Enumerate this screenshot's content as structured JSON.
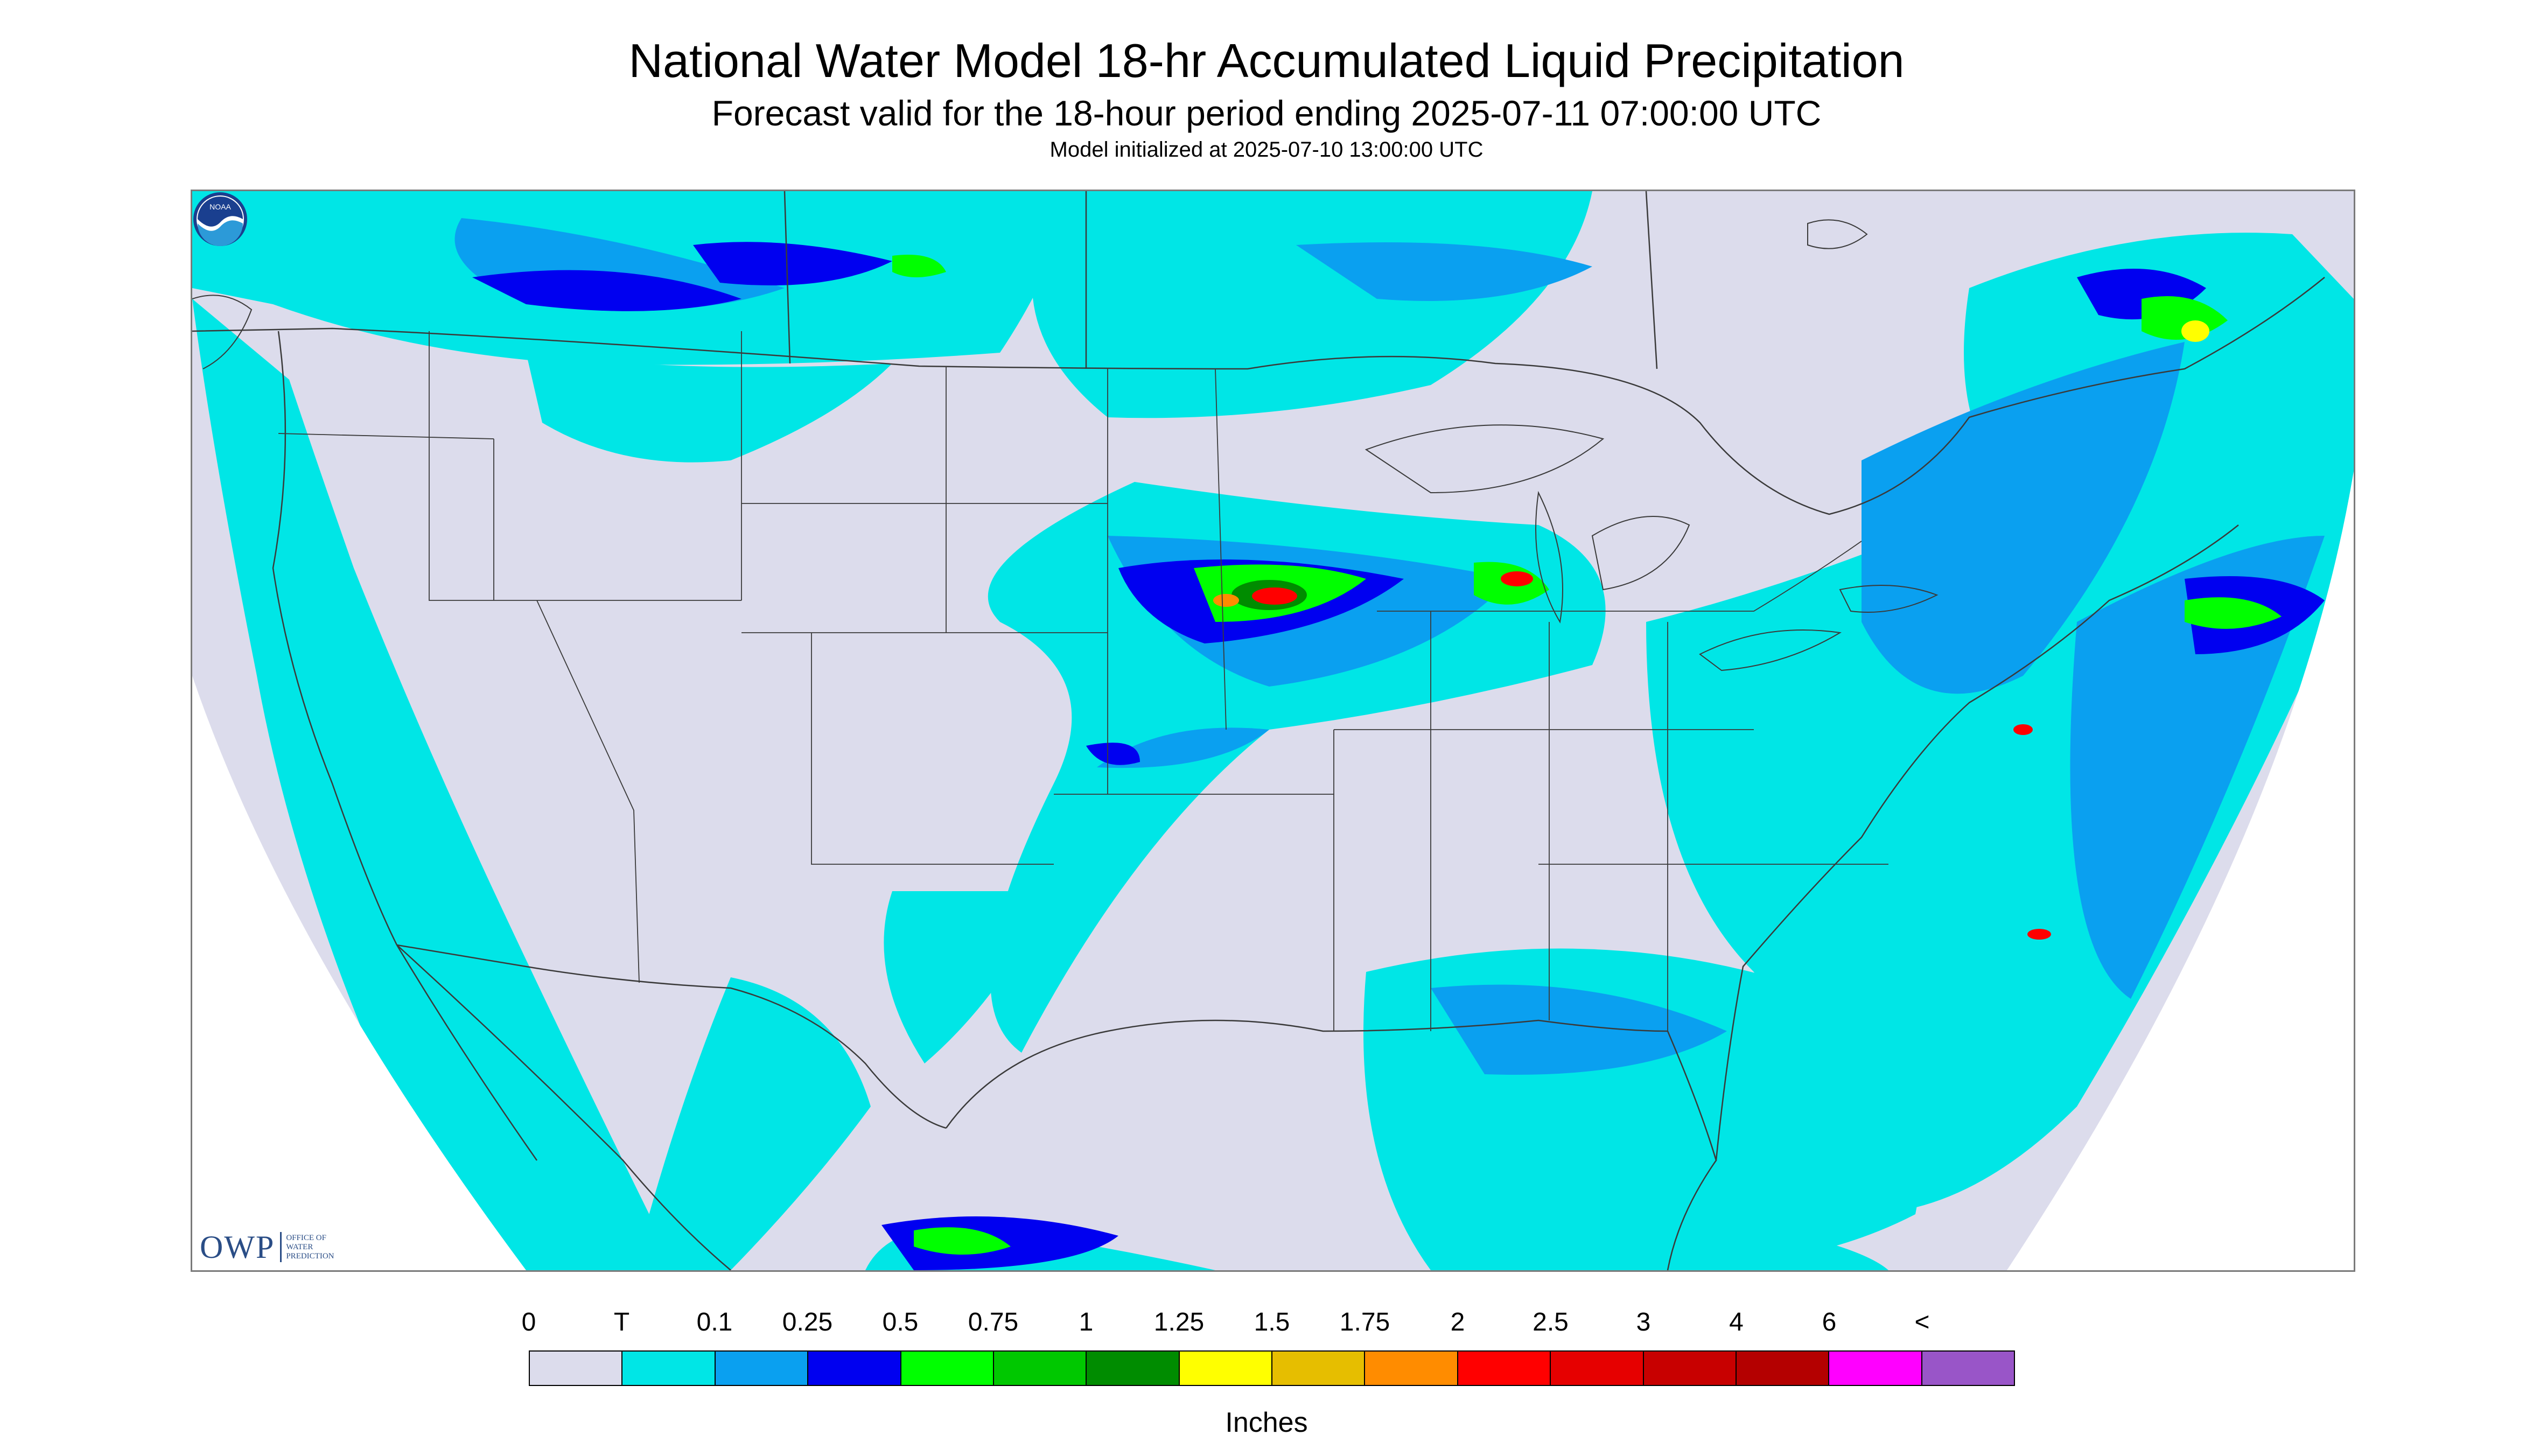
{
  "header": {
    "title": "National Water Model 18-hr Accumulated Liquid Precipitation",
    "subtitle": "Forecast valid for the 18-hour period ending 2025-07-11 07:00:00 UTC",
    "init": "Model initialized at 2025-07-10 13:00:00 UTC"
  },
  "logos": {
    "owp_mark": "OWP",
    "owp_lines": [
      "OFFICE OF",
      "WATER",
      "PREDICTION"
    ],
    "noaa_text": "NOAA"
  },
  "legend": {
    "ticks": [
      "0",
      "T",
      "0.1",
      "0.25",
      "0.5",
      "0.75",
      "1",
      "1.25",
      "1.5",
      "1.75",
      "2",
      "2.5",
      "3",
      "4",
      "6",
      "<"
    ],
    "colors": [
      "#dcdcec",
      "#00e6e6",
      "#0aa0f0",
      "#0000f0",
      "#00ff00",
      "#00c800",
      "#008c00",
      "#ffff00",
      "#e6be00",
      "#ff8c00",
      "#ff0000",
      "#e60000",
      "#c80000",
      "#b40000",
      "#ff00ff",
      "#9955c8"
    ],
    "units": "Inches"
  },
  "map": {
    "background_color": "#dcdcec",
    "land_no_data_color": "#dcdcec",
    "boundary_color": "#3a3a3a"
  }
}
